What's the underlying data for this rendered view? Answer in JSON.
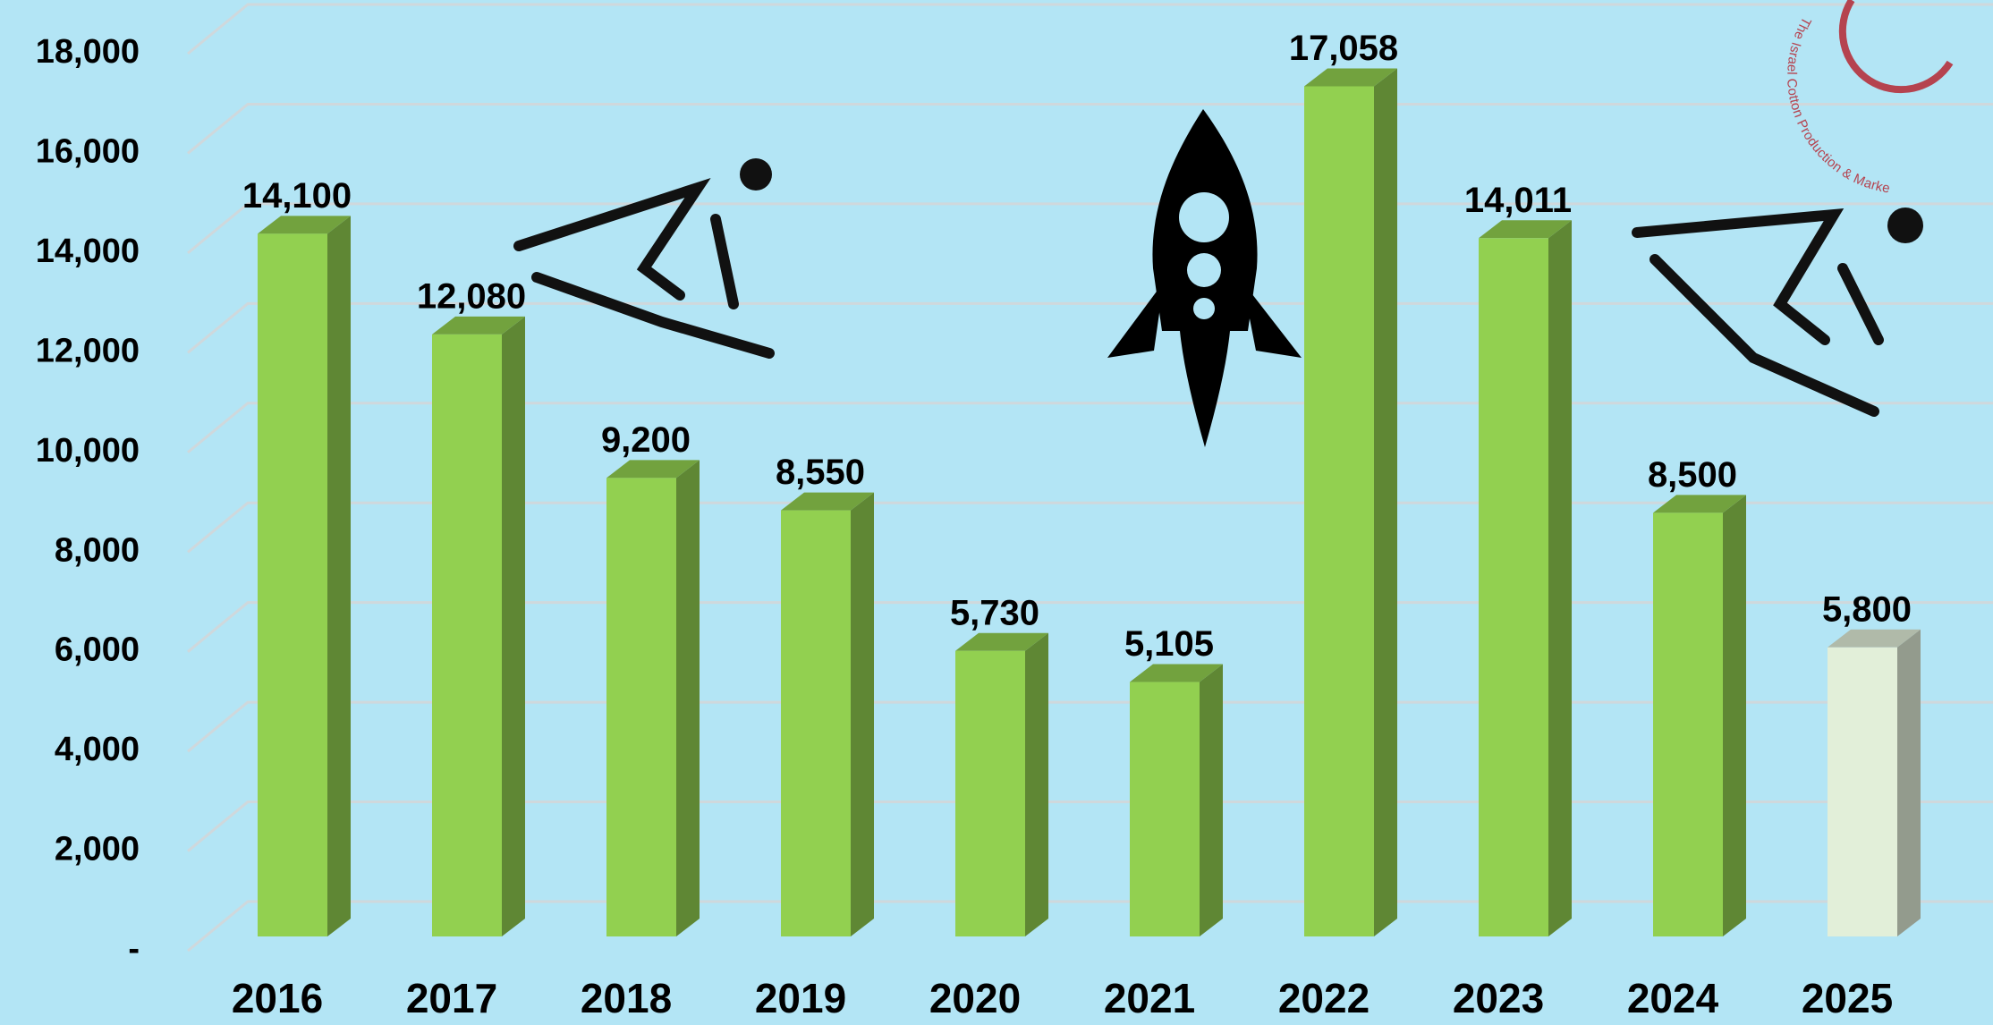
{
  "chart_data": {
    "type": "bar3d",
    "categories": [
      "2016",
      "2017",
      "2018",
      "2019",
      "2020",
      "2021",
      "2022",
      "2023",
      "2024",
      "2025"
    ],
    "values": [
      14100,
      12080,
      9200,
      8550,
      5730,
      5105,
      17058,
      14011,
      8500,
      5800
    ],
    "value_labels": [
      "14,100",
      "12,080",
      "9,200",
      "8,550",
      "5,730",
      "5,105",
      "17,058",
      "14,011",
      "8,500",
      "5,800"
    ],
    "colors": [
      "#92d050",
      "#92d050",
      "#92d050",
      "#92d050",
      "#92d050",
      "#92d050",
      "#92d050",
      "#92d050",
      "#92d050",
      "#e2efd9"
    ],
    "ylim": [
      0,
      18000
    ],
    "yticks": [
      {
        "value": 0,
        "label": "-"
      },
      {
        "value": 2000,
        "label": "2,000"
      },
      {
        "value": 4000,
        "label": "4,000"
      },
      {
        "value": 6000,
        "label": "6,000"
      },
      {
        "value": 8000,
        "label": "8,000"
      },
      {
        "value": 10000,
        "label": "10,000"
      },
      {
        "value": 12000,
        "label": "12,000"
      },
      {
        "value": 14000,
        "label": "14,000"
      },
      {
        "value": 16000,
        "label": "16,000"
      },
      {
        "value": 18000,
        "label": "18,000"
      }
    ],
    "grid": true,
    "logo_text": "The Israel Cotton Production & Marke"
  }
}
